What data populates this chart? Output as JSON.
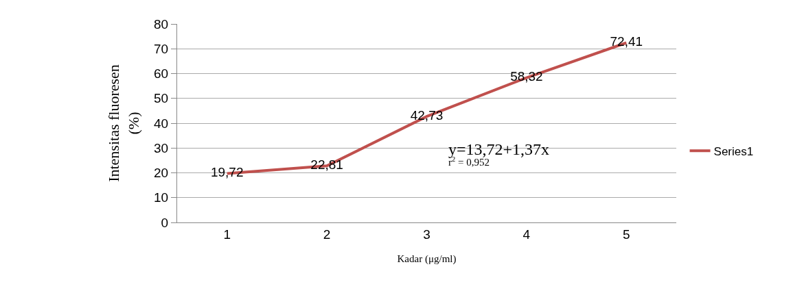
{
  "chart_data": {
    "type": "line",
    "xlabel": "Kadar (μg/ml)",
    "ylabel": "Intensitas fluoresen (%)",
    "categories": [
      "1",
      "2",
      "3",
      "4",
      "5"
    ],
    "series": [
      {
        "name": "Series1",
        "color": "#c0504d",
        "values": [
          19.72,
          22.81,
          42.73,
          58.32,
          72.41
        ]
      }
    ],
    "value_labels": [
      "19,72",
      "22,81",
      "42,73",
      "58,32",
      "72,41"
    ],
    "ylim": [
      0,
      80
    ],
    "yticks": [
      0,
      10,
      20,
      30,
      40,
      50,
      60,
      70,
      80
    ],
    "grid": "y",
    "legend": "right",
    "marker": "none",
    "line_style": "solid",
    "annotations": [
      "y=13,72+1,37x",
      "r$^{2}$ = 0,952"
    ]
  }
}
